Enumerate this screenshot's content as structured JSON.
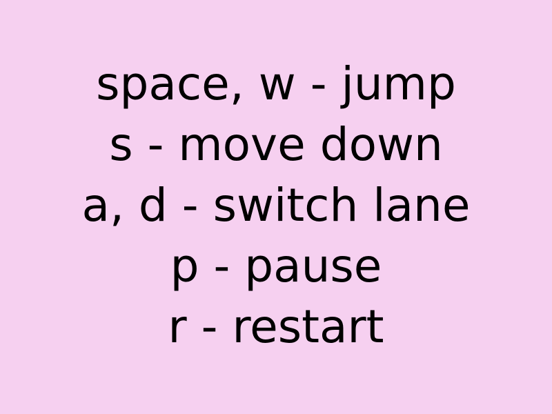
{
  "instructions": {
    "lines": [
      "space, w - jump",
      "s - move down",
      "a, d - switch lane",
      "p - pause",
      "r - restart"
    ]
  },
  "colors": {
    "background": "#f6d0f0",
    "text": "#000000"
  }
}
